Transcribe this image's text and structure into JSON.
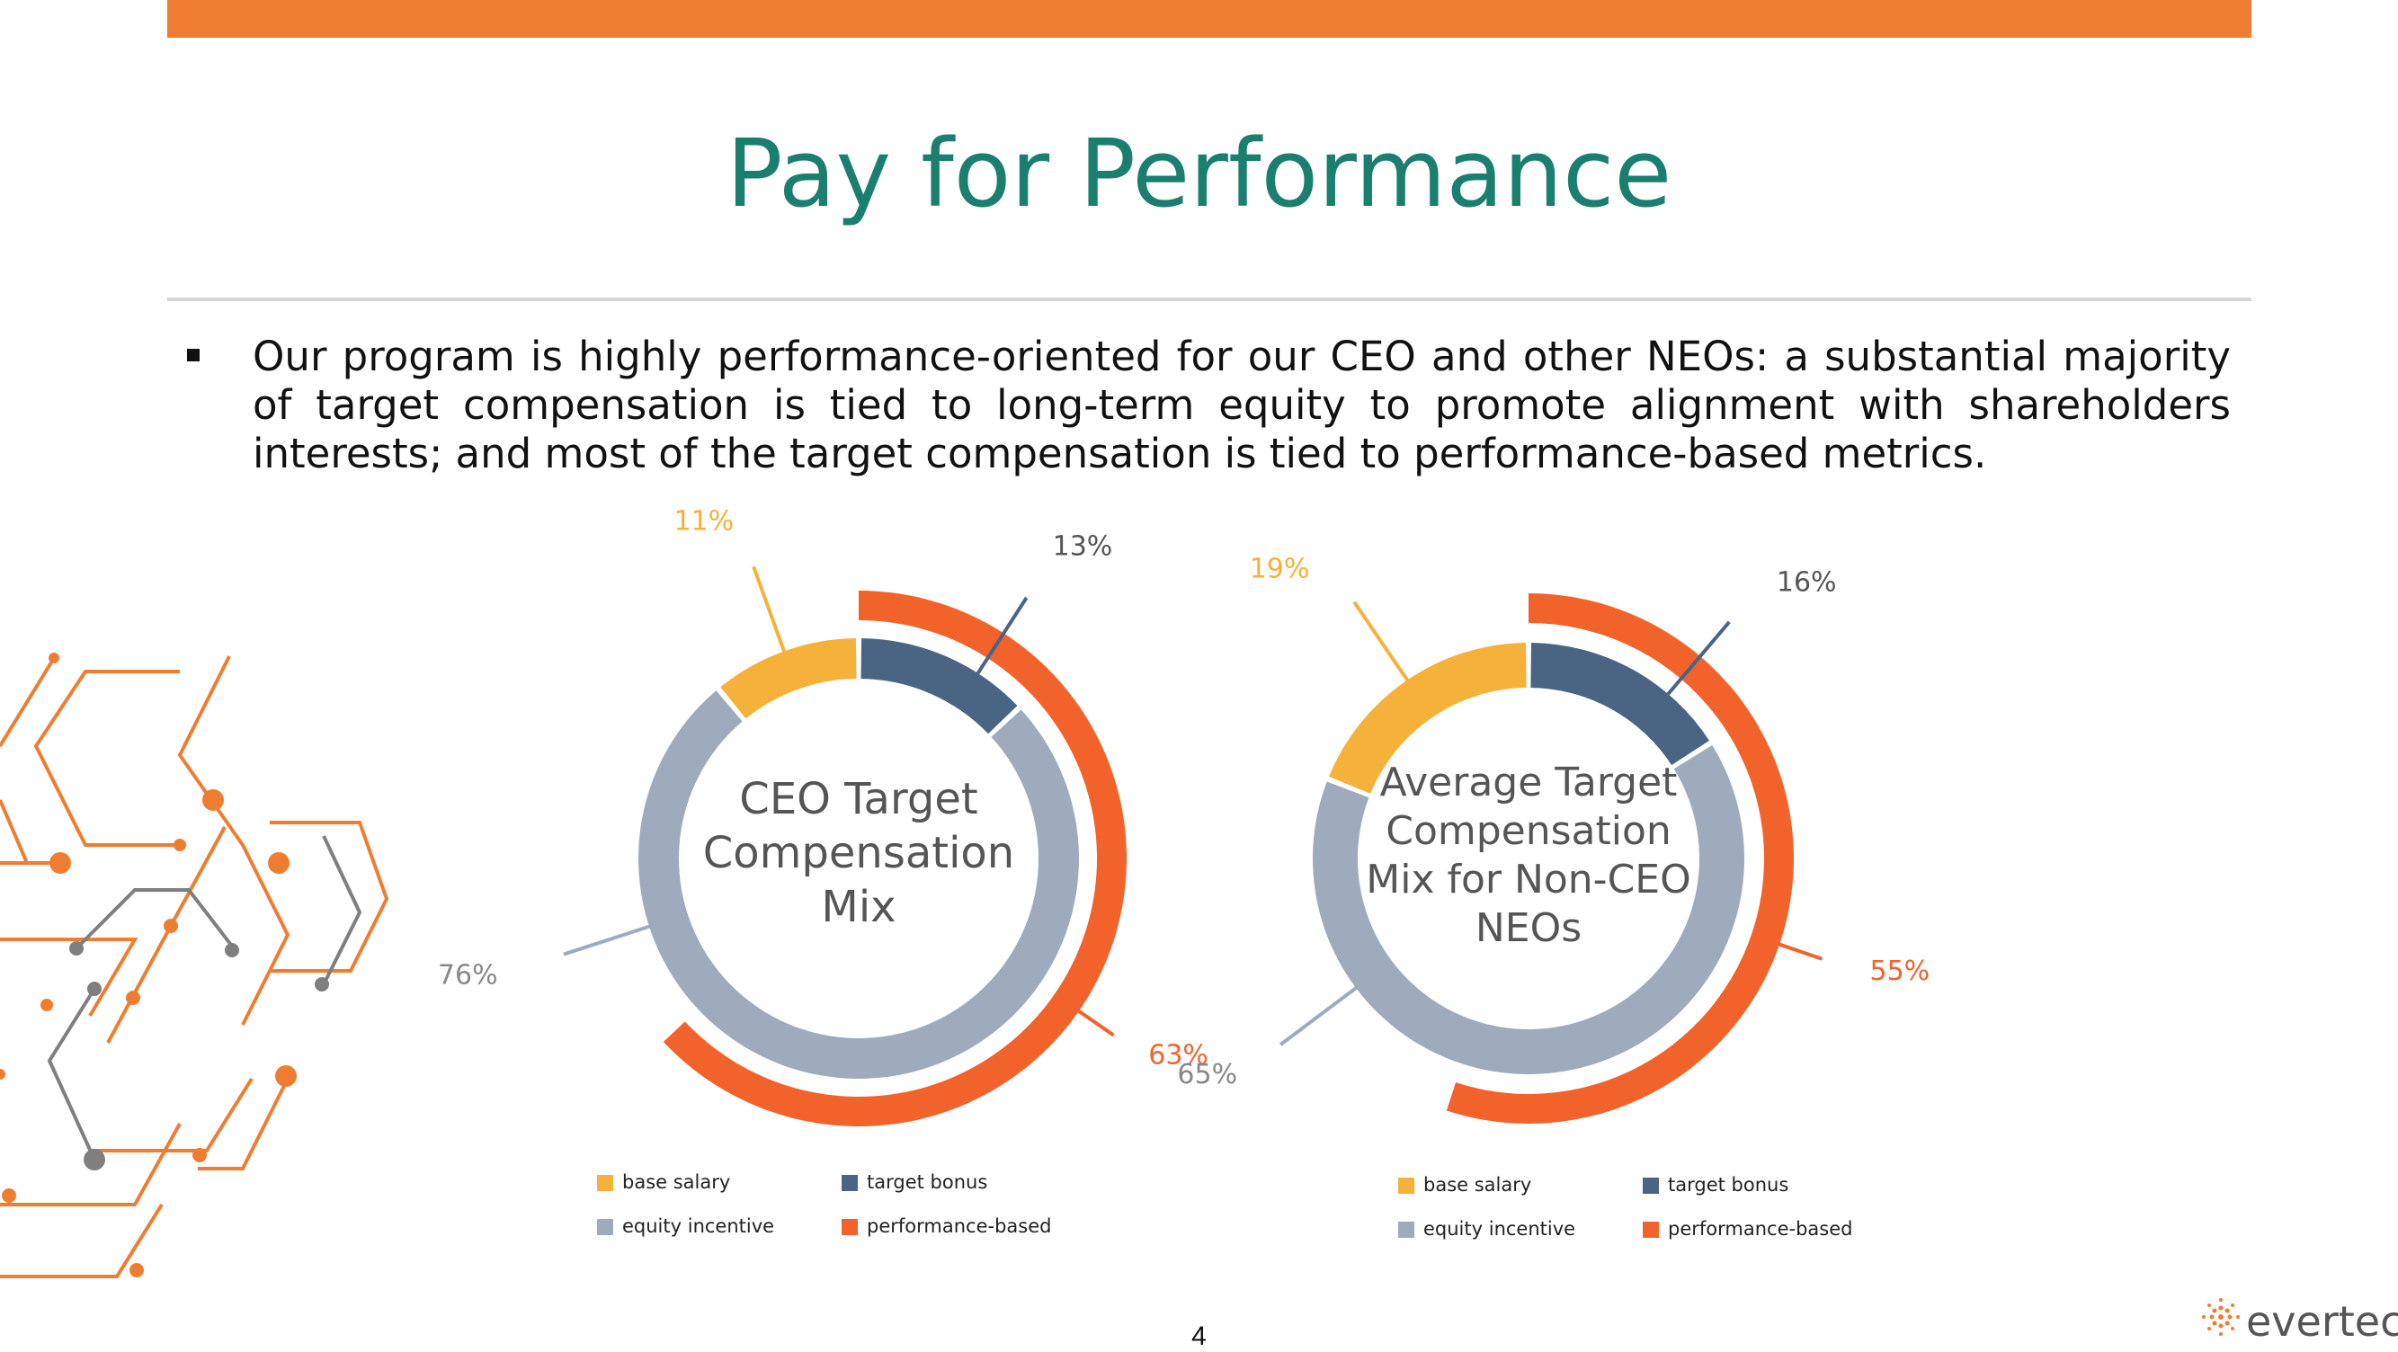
{
  "colors": {
    "accent": "#ef7d31",
    "title": "#1a7f6e",
    "base_salary": "#f6b13a",
    "target_bonus": "#4a6584",
    "equity_incentive": "#9eabbd",
    "performance_based": "#f2632b"
  },
  "slide": {
    "title": "Pay for Performance",
    "bullet": "Our program is highly performance-oriented for our CEO and other NEOs: a substantial majority of target compensation is tied to long-term equity to promote alignment with shareholders interests; and most of the target compensation is tied to performance-based metrics.",
    "page_number": "4"
  },
  "logo": {
    "text": "evertec",
    "icon": "dotted-sunburst-icon"
  },
  "chart_data": [
    {
      "type": "pie",
      "title": "CEO Target Compensation Mix",
      "title_lines": [
        "CEO Target",
        "Compensation",
        "Mix"
      ],
      "slices": [
        {
          "name": "base salary",
          "value": 11,
          "label": "11%"
        },
        {
          "name": "target bonus",
          "value": 13,
          "label": "13%"
        },
        {
          "name": "equity incentive",
          "value": 76,
          "label": "76%"
        }
      ],
      "outer_arc": {
        "name": "performance-based",
        "value": 63,
        "label": "63%"
      },
      "legend": [
        "base salary",
        "target bonus",
        "equity incentive",
        "performance-based"
      ]
    },
    {
      "type": "pie",
      "title": "Average Target Compensation Mix for Non-CEO NEOs",
      "title_lines": [
        "Average Target",
        "Compensation",
        "Mix for Non-CEO",
        "NEOs"
      ],
      "slices": [
        {
          "name": "base salary",
          "value": 19,
          "label": "19%"
        },
        {
          "name": "target bonus",
          "value": 16,
          "label": "16%"
        },
        {
          "name": "equity incentive",
          "value": 65,
          "label": "65%"
        }
      ],
      "outer_arc": {
        "name": "performance-based",
        "value": 55,
        "label": "55%"
      },
      "legend": [
        "base salary",
        "target bonus",
        "equity incentive",
        "performance-based"
      ]
    }
  ]
}
